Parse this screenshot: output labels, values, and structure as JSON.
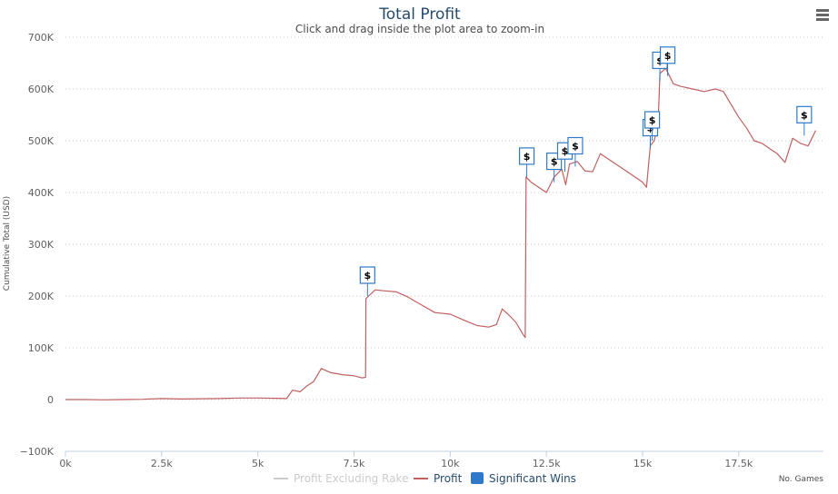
{
  "menu_icon": "hamburger-menu-icon",
  "chart_data": {
    "type": "line",
    "title": "Total Profit",
    "subtitle": "Click and drag inside the plot area to zoom-in",
    "xlabel": "No. Games",
    "ylabel": "Cumulative Total (USD)",
    "xlim": [
      0,
      19700
    ],
    "ylim": [
      -100000,
      700000
    ],
    "x_ticks": [
      0,
      2500,
      5000,
      7500,
      10000,
      12500,
      15000,
      17500
    ],
    "x_tick_labels": [
      "0k",
      "2.5k",
      "5k",
      "7.5k",
      "10k",
      "12.5k",
      "15k",
      "17.5k"
    ],
    "y_ticks": [
      -100000,
      0,
      100000,
      200000,
      300000,
      400000,
      500000,
      600000,
      700000
    ],
    "y_tick_labels": [
      "−100K",
      "0",
      "100K",
      "200K",
      "300K",
      "400K",
      "500K",
      "600K",
      "700K"
    ],
    "grid": true,
    "legend_position": "bottom",
    "series": [
      {
        "name": "Profit Excluding Rake",
        "color": "#cccccc",
        "hidden": true,
        "points": []
      },
      {
        "name": "Profit",
        "color": "#c06060",
        "points": [
          [
            0,
            0
          ],
          [
            500,
            0
          ],
          [
            1000,
            -500
          ],
          [
            1500,
            0
          ],
          [
            2000,
            500
          ],
          [
            2500,
            2000
          ],
          [
            3000,
            1000
          ],
          [
            3500,
            1500
          ],
          [
            4000,
            2000
          ],
          [
            4500,
            3000
          ],
          [
            5000,
            3000
          ],
          [
            5500,
            2500
          ],
          [
            5750,
            2000
          ],
          [
            5900,
            18000
          ],
          [
            6100,
            15000
          ],
          [
            6250,
            25000
          ],
          [
            6450,
            35000
          ],
          [
            6650,
            60000
          ],
          [
            6900,
            52000
          ],
          [
            7200,
            48000
          ],
          [
            7500,
            46000
          ],
          [
            7700,
            42000
          ],
          [
            7800,
            43000
          ],
          [
            7810,
            195000
          ],
          [
            7880,
            200000
          ],
          [
            8050,
            212000
          ],
          [
            8300,
            210000
          ],
          [
            8600,
            208000
          ],
          [
            8900,
            198000
          ],
          [
            9200,
            185000
          ],
          [
            9600,
            168000
          ],
          [
            10000,
            165000
          ],
          [
            10300,
            155000
          ],
          [
            10700,
            143000
          ],
          [
            11000,
            140000
          ],
          [
            11200,
            145000
          ],
          [
            11350,
            175000
          ],
          [
            11500,
            165000
          ],
          [
            11700,
            150000
          ],
          [
            11900,
            125000
          ],
          [
            11950,
            120000
          ],
          [
            11970,
            430000
          ],
          [
            12100,
            420000
          ],
          [
            12300,
            410000
          ],
          [
            12500,
            400000
          ],
          [
            12700,
            430000
          ],
          [
            12900,
            445000
          ],
          [
            13000,
            415000
          ],
          [
            13100,
            455000
          ],
          [
            13300,
            460000
          ],
          [
            13500,
            442000
          ],
          [
            13700,
            440000
          ],
          [
            13900,
            475000
          ],
          [
            14200,
            460000
          ],
          [
            14500,
            445000
          ],
          [
            14800,
            430000
          ],
          [
            15000,
            420000
          ],
          [
            15100,
            410000
          ],
          [
            15200,
            490000
          ],
          [
            15300,
            500000
          ],
          [
            15400,
            530000
          ],
          [
            15450,
            630000
          ],
          [
            15600,
            640000
          ],
          [
            15800,
            610000
          ],
          [
            16000,
            605000
          ],
          [
            16300,
            600000
          ],
          [
            16600,
            595000
          ],
          [
            16900,
            600000
          ],
          [
            17100,
            595000
          ],
          [
            17300,
            570000
          ],
          [
            17500,
            545000
          ],
          [
            17700,
            525000
          ],
          [
            17900,
            500000
          ],
          [
            18100,
            495000
          ],
          [
            18300,
            485000
          ],
          [
            18500,
            475000
          ],
          [
            18700,
            458000
          ],
          [
            18900,
            505000
          ],
          [
            19100,
            495000
          ],
          [
            19300,
            490000
          ],
          [
            19500,
            520000
          ]
        ]
      }
    ],
    "flags": {
      "name": "Significant Wins",
      "color": "#3079c8",
      "label": "$",
      "points": [
        [
          7850,
          200000
        ],
        [
          11990,
          430000
        ],
        [
          12700,
          420000
        ],
        [
          12980,
          440000
        ],
        [
          13250,
          450000
        ],
        [
          15200,
          485000
        ],
        [
          15250,
          500000
        ],
        [
          15450,
          615000
        ],
        [
          15650,
          625000
        ],
        [
          19200,
          510000
        ]
      ]
    }
  }
}
